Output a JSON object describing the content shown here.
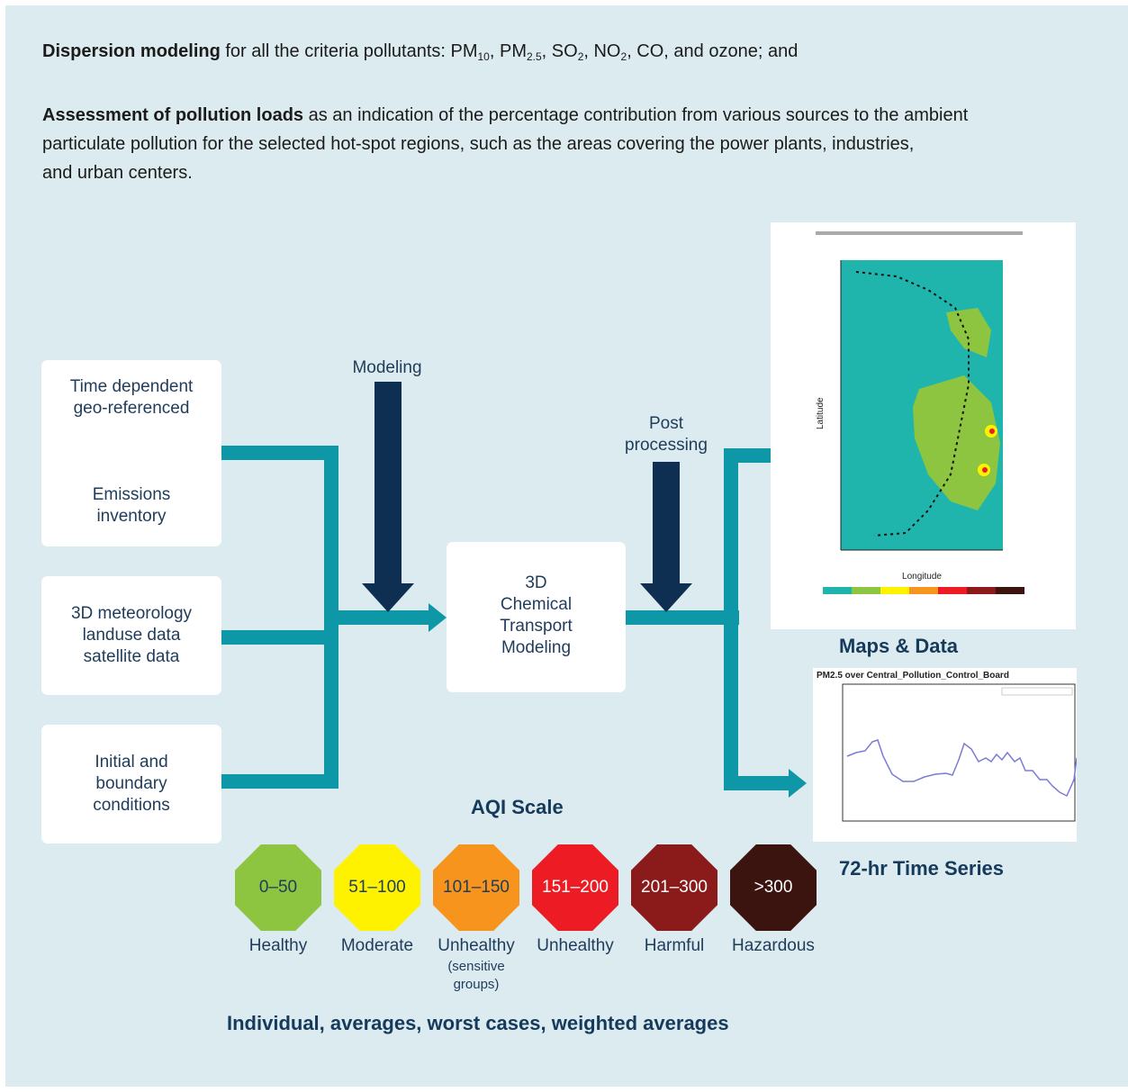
{
  "intro": {
    "p1_bold": "Dispersion modeling",
    "p1_text": "for all the criteria pollutants: PM",
    "p1_pm10_sub": "10",
    "p1_sep1": ", PM",
    "p1_pm25_sub": "2.5",
    "p1_sep2": ", SO",
    "p1_so2_sub": "2",
    "p1_sep3": ", NO",
    "p1_no2_sub": "2",
    "p1_end": ", CO, and ozone; and",
    "p2_bold": "Assessment of pollution loads",
    "p2_line1": "as an indication of the percentage contribution from various sources to the ambient",
    "p2_line2": "particulate pollution for the selected hot-spot regions, such as the areas covering the power plants, industries,",
    "p2_line3": "and urban centers."
  },
  "inputs": {
    "box1_line1": "Time dependent",
    "box1_line2": "geo-referenced",
    "box1_line3": "Emissions",
    "box1_line4": "inventory",
    "box2_line1": "3D meteorology",
    "box2_line2": "landuse data",
    "box2_line3": "satellite data",
    "box3_line1": "Initial and",
    "box3_line2": "boundary",
    "box3_line3": "conditions"
  },
  "labels": {
    "modeling": "Modeling",
    "post_line1": "Post",
    "post_line2": "processing"
  },
  "center_box": {
    "line1": "3D",
    "line2": "Chemical",
    "line3": "Transport",
    "line4": "Modeling"
  },
  "outputs": {
    "maps_title": "Maps & Data",
    "ts_title": "72-hr Time Series",
    "map_ylabel": "Latitude",
    "map_xlabel": "Longitude",
    "ts_title_inner": "PM2.5 over Central_Pollution_Control_Board"
  },
  "aqi": {
    "title": "AQI Scale",
    "levels": [
      {
        "range": "0–50",
        "label": "Healthy",
        "color": "#8dc540",
        "text_color": "#1f3c5a"
      },
      {
        "range": "51–100",
        "label": "Moderate",
        "color": "#fff200",
        "text_color": "#1f3c5a"
      },
      {
        "range": "101–150",
        "label": "Unhealthy",
        "color": "#f7941d",
        "text_color": "#1f3c5a"
      },
      {
        "range": "151–200",
        "label": "Unhealthy",
        "color": "#ed1c24",
        "text_color": "#ffffff"
      },
      {
        "range": "201–300",
        "label": "Harmful",
        "color": "#8b1a1a",
        "text_color": "#ffffff"
      },
      {
        "range": ">300",
        "label": "Hazardous",
        "color": "#3b1410",
        "text_color": "#ffffff"
      }
    ],
    "sensitive_line1": "(sensitive",
    "sensitive_line2": "groups)",
    "footer": "Individual, averages, worst cases, weighted averages"
  },
  "colors": {
    "background": "#dcebef",
    "teal_connector": "#0e97a6",
    "navy_arrow": "#0f2f52",
    "heading": "#163a5c"
  }
}
